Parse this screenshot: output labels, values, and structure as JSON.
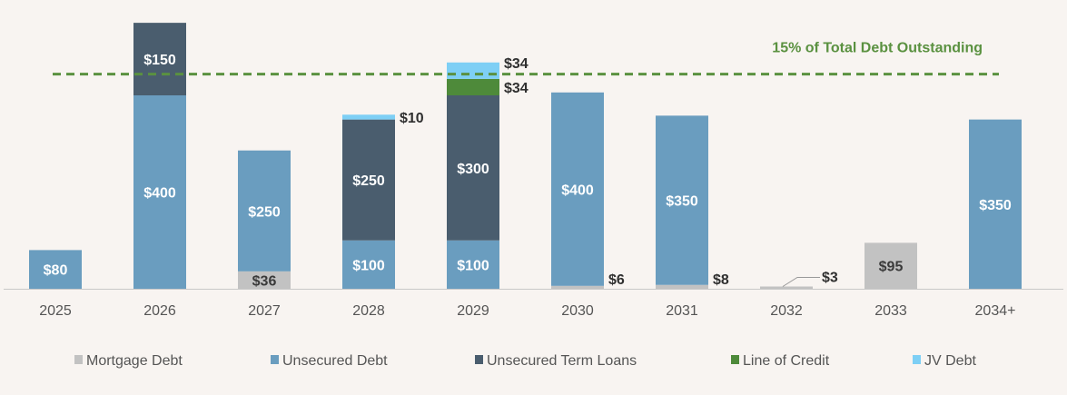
{
  "chart_data": {
    "type": "bar",
    "stacked": true,
    "title": "",
    "xlabel": "",
    "ylabel": "",
    "categories": [
      "2025",
      "2026",
      "2027",
      "2028",
      "2029",
      "2030",
      "2031",
      "2032",
      "2033",
      "2034+"
    ],
    "series": [
      {
        "name": "Mortgage Debt",
        "color": "#c2c2c2",
        "values": [
          0,
          0,
          36,
          0,
          0,
          6,
          8,
          3,
          95,
          0
        ]
      },
      {
        "name": "Unsecured Debt",
        "color": "#6a9dbf",
        "values": [
          80,
          400,
          250,
          100,
          100,
          400,
          350,
          0,
          0,
          350
        ]
      },
      {
        "name": "Unsecured Term Loans",
        "color": "#4a5d6e",
        "values": [
          0,
          150,
          0,
          250,
          300,
          0,
          0,
          0,
          0,
          0
        ]
      },
      {
        "name": "Line of Credit",
        "color": "#4e8a3a",
        "values": [
          0,
          0,
          0,
          0,
          34,
          0,
          0,
          0,
          0,
          0
        ]
      },
      {
        "name": "JV Debt",
        "color": "#7ecff5",
        "values": [
          0,
          0,
          0,
          10,
          34,
          0,
          0,
          0,
          0,
          0
        ]
      }
    ],
    "data_labels": {
      "Mortgage Debt": [
        "",
        "",
        "$36",
        "",
        "",
        "$6",
        "$8",
        "$3",
        "$95",
        ""
      ],
      "Unsecured Debt": [
        "$80",
        "$400",
        "$250",
        "$100",
        "$100",
        "$400",
        "$350",
        "",
        "",
        "$350"
      ],
      "Unsecured Term Loans": [
        "",
        "$150",
        "",
        "$250",
        "$300",
        "",
        "",
        "",
        "",
        ""
      ],
      "Line of Credit": [
        "",
        "",
        "",
        "",
        "$34",
        "",
        "",
        "",
        "",
        ""
      ],
      "JV Debt": [
        "",
        "",
        "",
        "$10",
        "$34",
        "",
        "",
        "",
        "",
        ""
      ]
    },
    "reference_line": {
      "label": "15% of Total Debt Outstanding",
      "value": 444,
      "color": "#5a9140",
      "style": "dashed"
    },
    "ylim": [
      0,
      550
    ],
    "grid": false,
    "legend_position": "bottom"
  }
}
